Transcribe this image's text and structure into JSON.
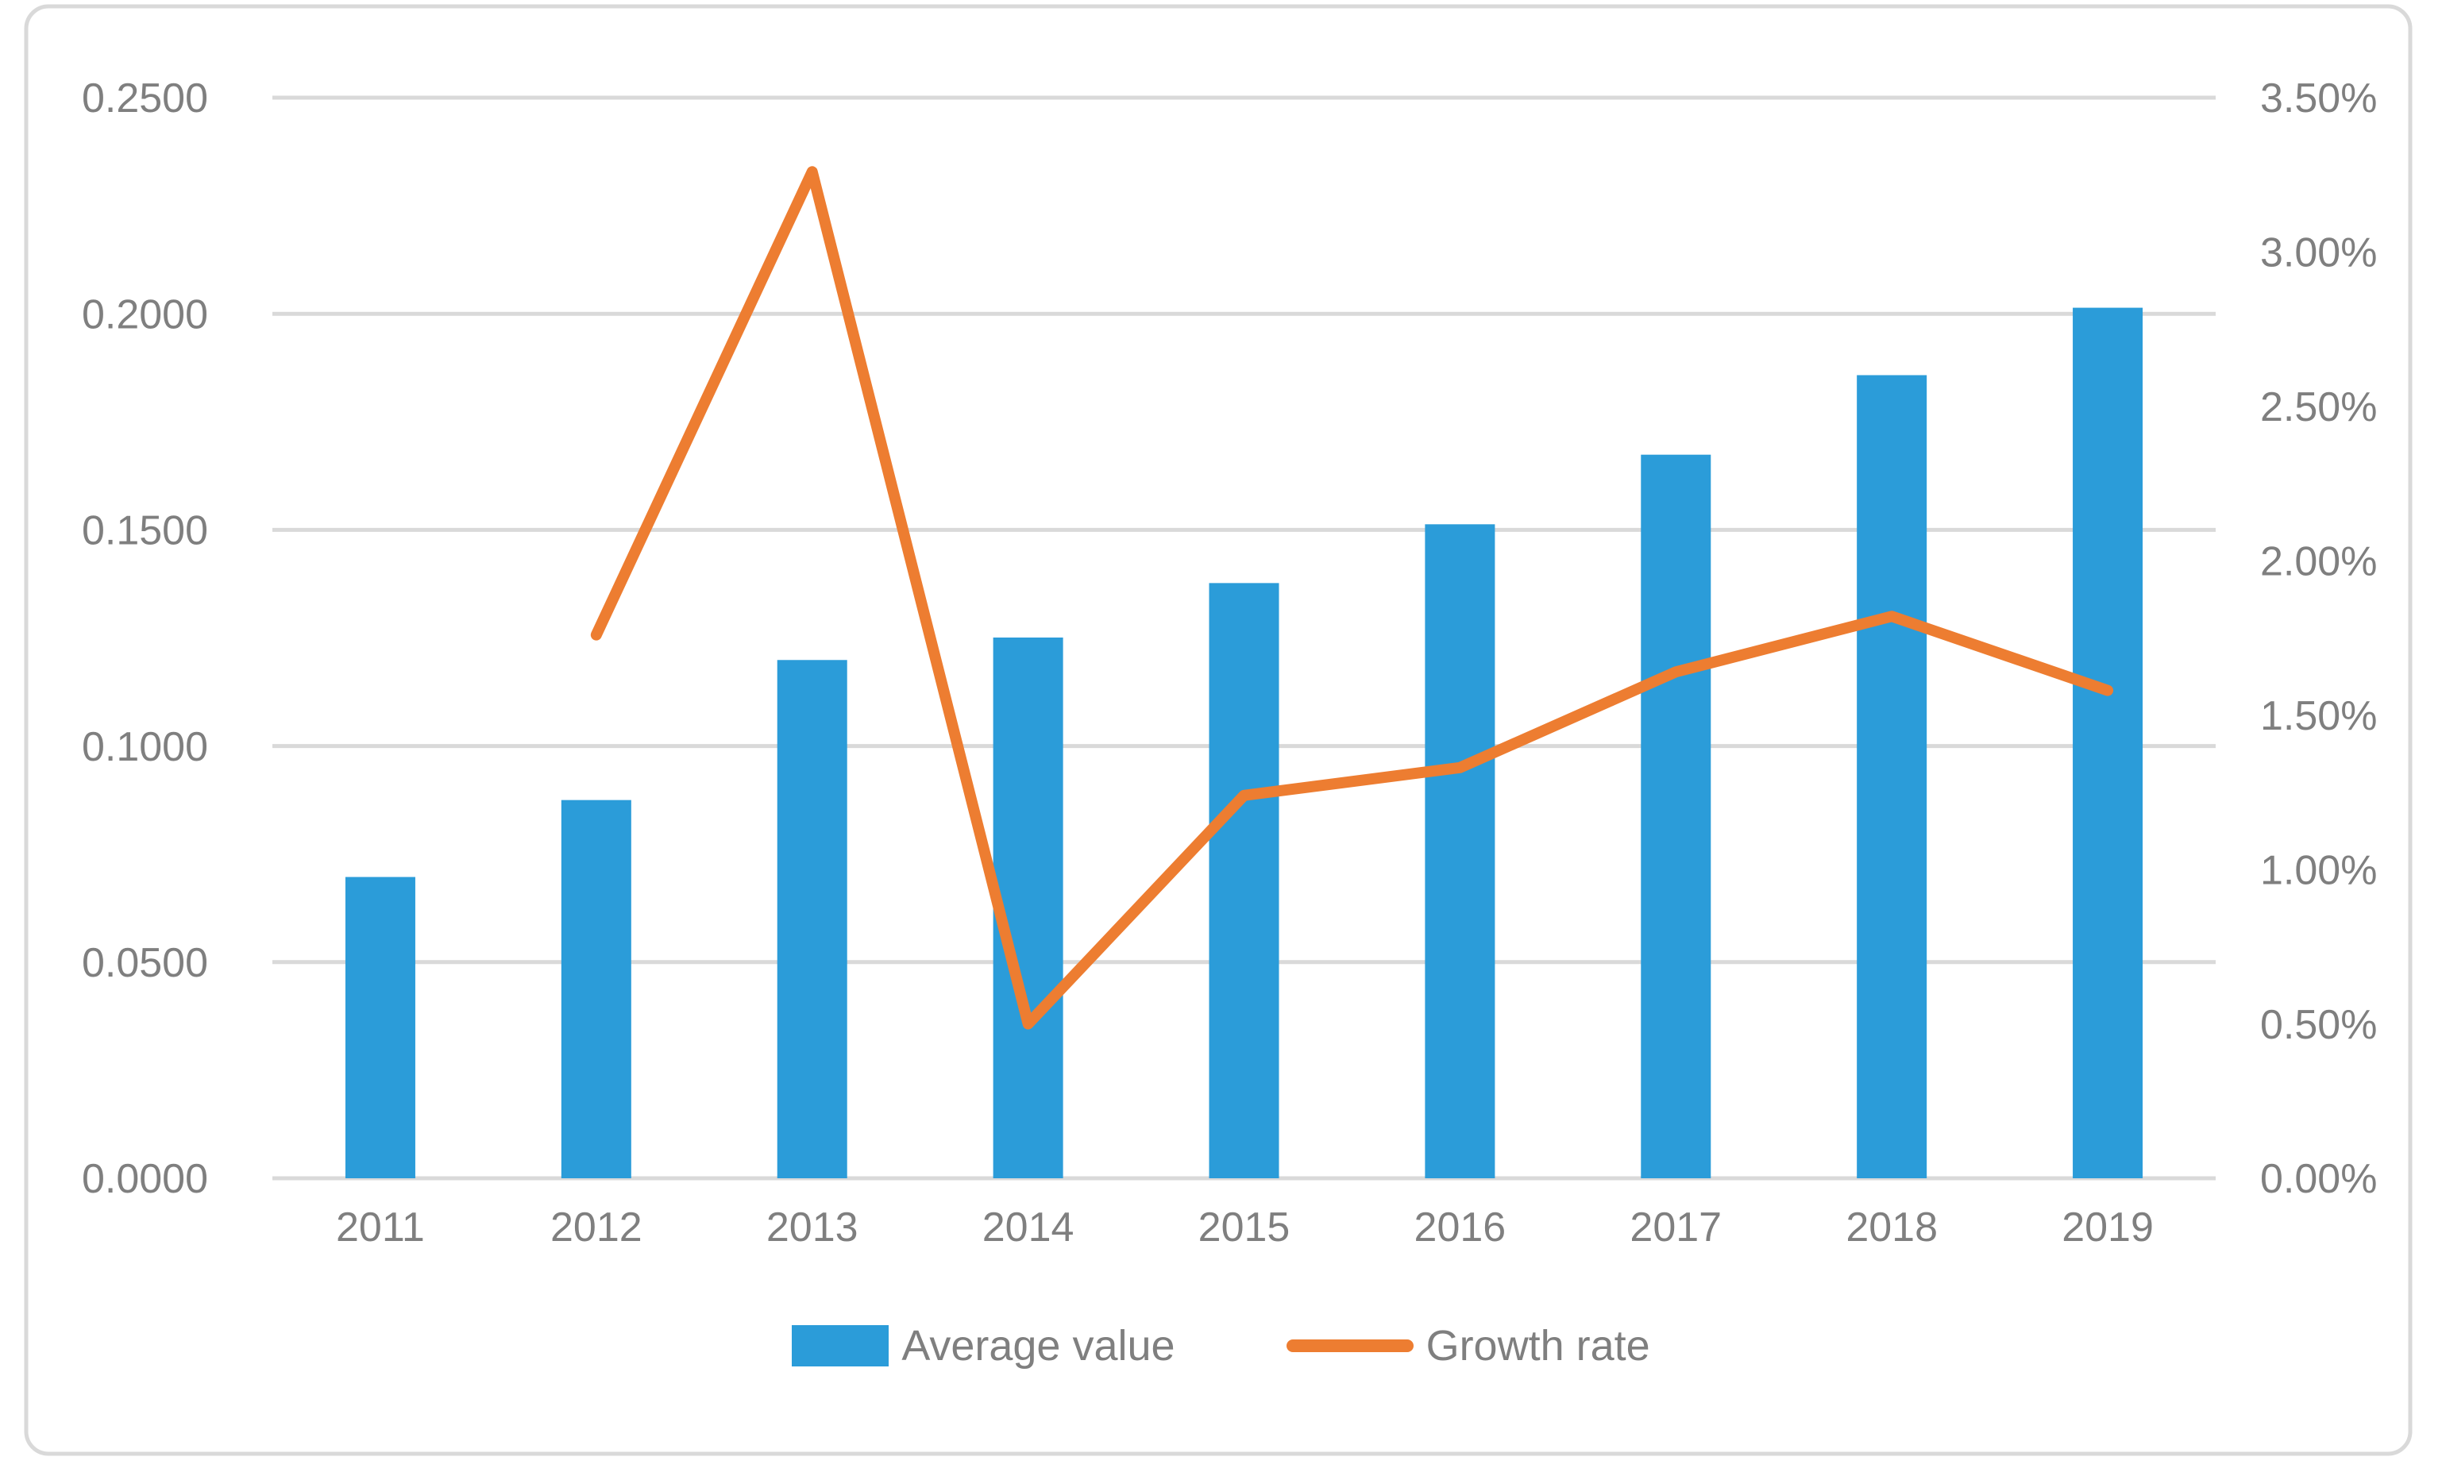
{
  "chart_data": {
    "type": "combo",
    "title": "",
    "categories": [
      "2011",
      "2012",
      "2013",
      "2014",
      "2015",
      "2016",
      "2017",
      "2018",
      "2019"
    ],
    "series": [
      {
        "name": "Average value",
        "type": "bar",
        "axis": "left",
        "color": "#2b9cd9",
        "values": [
          0.0697,
          0.0875,
          0.1199,
          0.1251,
          0.1377,
          0.1513,
          0.1674,
          0.1858,
          0.2014
        ]
      },
      {
        "name": "Growth rate",
        "type": "line",
        "axis": "right",
        "unit": "%",
        "color": "#ed7d31",
        "values": [
          null,
          1.76,
          3.26,
          0.5,
          1.24,
          1.33,
          1.64,
          1.82,
          1.58
        ]
      }
    ],
    "left_axis": {
      "min": 0,
      "max": 0.25,
      "step": 0.05,
      "tick_labels": [
        "0.0000",
        "0.0500",
        "0.1000",
        "0.1500",
        "0.2000",
        "0.2500"
      ]
    },
    "right_axis": {
      "min": 0,
      "max": 3.5,
      "step": 0.5,
      "tick_labels": [
        "0.00%",
        "0.50%",
        "1.00%",
        "1.50%",
        "2.00%",
        "2.50%",
        "3.00%",
        "3.50%"
      ]
    },
    "grid": true,
    "legend_position": "bottom"
  },
  "colors": {
    "bar": "#2b9cd9",
    "line": "#ed7d31",
    "gridline": "#d9d9d9",
    "border": "#d9d9d9",
    "axis_text": "#7f7f7f",
    "background": "#ffffff"
  },
  "legend": {
    "items": [
      {
        "label": "Average value"
      },
      {
        "label": "Growth rate"
      }
    ]
  }
}
